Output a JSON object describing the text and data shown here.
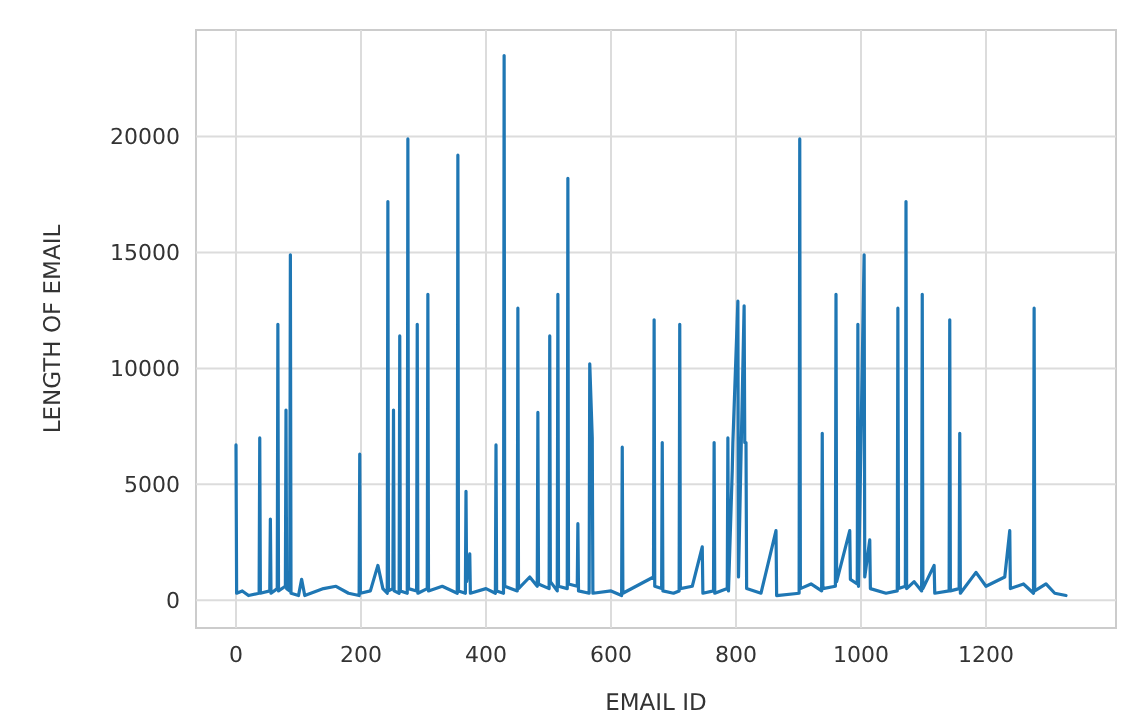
{
  "chart_data": {
    "type": "line",
    "xlabel": "EMAIL ID",
    "ylabel": "LENGTH OF EMAIL",
    "xlim": [
      -64,
      1408
    ],
    "ylim": [
      -1200,
      24600
    ],
    "xticks": [
      0,
      200,
      400,
      600,
      800,
      1000,
      1200
    ],
    "yticks": [
      0,
      5000,
      10000,
      15000,
      20000
    ],
    "grid": true,
    "marker": "none",
    "line_style": "solid",
    "series": [
      {
        "color": "#1f77b4",
        "x": [
          0,
          1,
          10,
          20,
          37,
          38,
          39,
          54,
          55,
          56,
          66,
          67,
          68,
          79,
          80,
          81,
          86,
          87,
          88,
          100,
          105,
          110,
          140,
          160,
          180,
          197,
          198,
          199,
          215,
          227,
          235,
          242,
          243,
          244,
          251,
          252,
          253,
          261,
          262,
          263,
          274,
          275,
          276,
          289,
          290,
          291,
          306,
          307,
          308,
          330,
          354,
          355,
          356,
          367,
          368,
          369,
          374,
          375,
          400,
          415,
          416,
          417,
          428,
          429,
          430,
          450,
          451,
          452,
          470,
          482,
          483,
          484,
          501,
          502,
          503,
          514,
          515,
          516,
          530,
          531,
          532,
          546,
          547,
          548,
          565,
          566,
          570,
          571,
          600,
          617,
          618,
          619,
          668,
          669,
          670,
          681,
          682,
          683,
          700,
          709,
          710,
          711,
          730,
          746,
          747,
          764,
          765,
          766,
          786,
          787,
          788,
          794,
          795,
          803,
          804,
          813,
          814,
          816,
          817,
          840,
          864,
          865,
          901,
          902,
          903,
          920,
          937,
          938,
          939,
          959,
          960,
          961,
          982,
          983,
          994,
          995,
          996,
          1005,
          1006,
          1014,
          1015,
          1040,
          1058,
          1059,
          1060,
          1071,
          1072,
          1073,
          1085,
          1097,
          1098,
          1099,
          1117,
          1118,
          1141,
          1142,
          1143,
          1157,
          1158,
          1159,
          1184,
          1200,
          1230,
          1238,
          1239,
          1260,
          1276,
          1277,
          1278,
          1296,
          1310,
          1328
        ],
        "values": [
          6700,
          300,
          400,
          200,
          300,
          7000,
          300,
          400,
          3500,
          300,
          500,
          11900,
          400,
          600,
          8200,
          500,
          400,
          14900,
          300,
          200,
          900,
          200,
          500,
          600,
          300,
          200,
          6300,
          300,
          400,
          1500,
          500,
          300,
          17200,
          400,
          500,
          8200,
          400,
          300,
          11400,
          400,
          300,
          19900,
          500,
          400,
          11900,
          300,
          500,
          13200,
          400,
          600,
          300,
          19200,
          400,
          300,
          4700,
          800,
          2000,
          300,
          500,
          300,
          6700,
          400,
          300,
          23500,
          600,
          400,
          12600,
          500,
          1000,
          600,
          8100,
          700,
          500,
          11400,
          800,
          400,
          13200,
          600,
          500,
          18200,
          700,
          600,
          3300,
          400,
          300,
          10200,
          7000,
          300,
          400,
          200,
          6600,
          300,
          1000,
          12100,
          600,
          500,
          6800,
          400,
          300,
          400,
          11900,
          500,
          600,
          2300,
          300,
          400,
          6800,
          300,
          500,
          7000,
          400,
          5600,
          6800,
          12900,
          1000,
          12700,
          6800,
          6800,
          500,
          300,
          3000,
          200,
          300,
          19900,
          500,
          700,
          400,
          7200,
          500,
          600,
          13200,
          800,
          3000,
          900,
          700,
          11900,
          600,
          14900,
          1000,
          2600,
          500,
          300,
          400,
          12600,
          500,
          600,
          17200,
          500,
          800,
          400,
          13200,
          500,
          1500,
          300,
          400,
          12100,
          400,
          500,
          7200,
          300,
          1200,
          600,
          1000,
          3000,
          500,
          700,
          300,
          12600,
          400,
          700,
          300,
          200
        ]
      }
    ]
  }
}
